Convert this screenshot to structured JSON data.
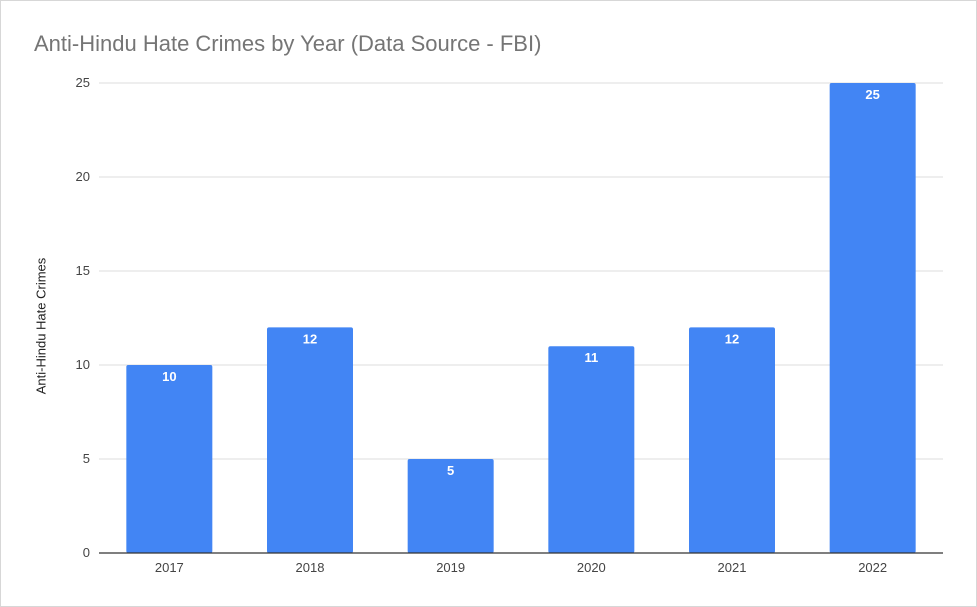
{
  "chart_data": {
    "type": "bar",
    "title": "Anti-Hindu Hate Crimes by Year (Data Source - FBI)",
    "xlabel": "",
    "ylabel": "Anti-Hindu Hate Crimes",
    "categories": [
      "2017",
      "2018",
      "2019",
      "2020",
      "2021",
      "2022"
    ],
    "values": [
      10,
      12,
      5,
      11,
      12,
      25
    ],
    "data_labels": [
      "10",
      "12",
      "5",
      "11",
      "12",
      "25"
    ],
    "y_ticks": [
      "0",
      "5",
      "10",
      "15",
      "20",
      "25"
    ],
    "ylim": [
      0,
      25
    ],
    "grid": true,
    "legend": "none",
    "bar_color": "#4285f4"
  }
}
